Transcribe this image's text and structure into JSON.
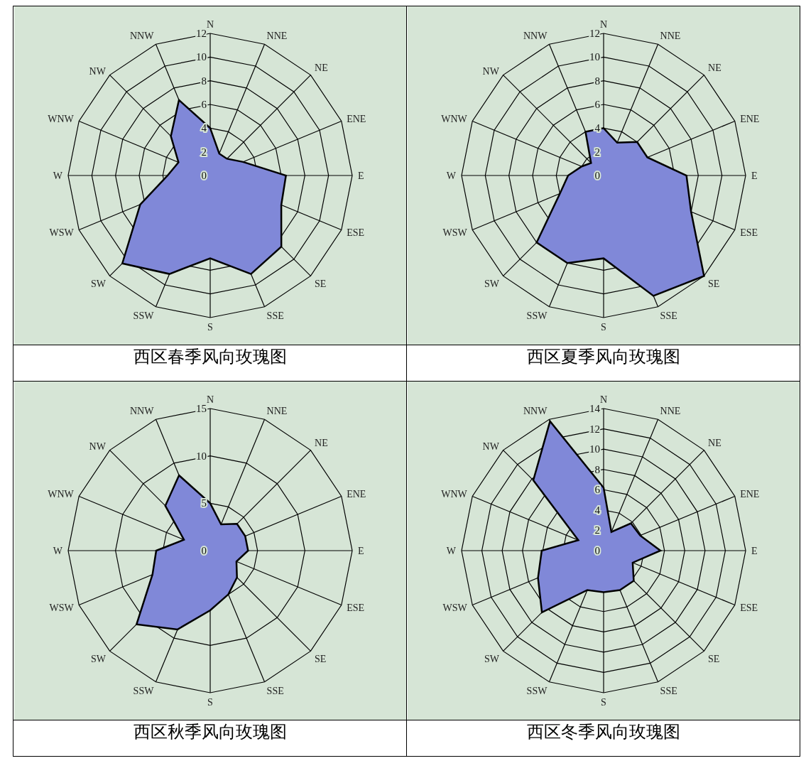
{
  "chart_data": [
    {
      "type": "radar",
      "title": "西区春季风向玫瑰图",
      "categories": [
        "N",
        "NNE",
        "NE",
        "ENE",
        "E",
        "ESE",
        "SE",
        "SSE",
        "S",
        "SSW",
        "SW",
        "WSW",
        "W",
        "WNW",
        "NW",
        "NNW"
      ],
      "series": [
        {
          "color": "#8088d8",
          "values": [
            4,
            2,
            2,
            3,
            6.4,
            6.5,
            8.5,
            9,
            7,
            9,
            10.5,
            6.4,
            3.6,
            2.9,
            4.7,
            6.9
          ]
        }
      ],
      "ylim": [
        0,
        12
      ],
      "yticks": [
        0,
        2,
        4,
        6,
        8,
        10,
        12
      ],
      "grid": true
    },
    {
      "type": "radar",
      "title": "西区夏季风向玫瑰图",
      "categories": [
        "N",
        "NNE",
        "NE",
        "ENE",
        "E",
        "ESE",
        "SE",
        "SSE",
        "S",
        "SSW",
        "SW",
        "WSW",
        "W",
        "WNW",
        "NW",
        "NNW"
      ],
      "series": [
        {
          "color": "#8088d8",
          "values": [
            4,
            3,
            4,
            4,
            7,
            8,
            12,
            11,
            7,
            8,
            8,
            4,
            3,
            2,
            1.5,
            4
          ]
        }
      ],
      "ylim": [
        0,
        12
      ],
      "yticks": [
        0,
        2,
        4,
        6,
        8,
        10,
        12
      ],
      "grid": true
    },
    {
      "type": "radar",
      "title": "西区秋季风向玫瑰图",
      "categories": [
        "N",
        "NNE",
        "NE",
        "ENE",
        "E",
        "ESE",
        "SE",
        "SSE",
        "S",
        "SSW",
        "SW",
        "WSW",
        "W",
        "WNW",
        "NW",
        "NNW"
      ],
      "series": [
        {
          "color": "#8088d8",
          "values": [
            5,
            3,
            4,
            4,
            4,
            3,
            4,
            5,
            6.3,
            9,
            11,
            6.6,
            5.7,
            3,
            6.7,
            8.6
          ]
        }
      ],
      "ylim": [
        0,
        15
      ],
      "yticks": [
        0,
        5,
        10,
        15
      ],
      "grid": true
    },
    {
      "type": "radar",
      "title": "西区冬季风向玫瑰图",
      "categories": [
        "N",
        "NNE",
        "NE",
        "ENE",
        "E",
        "ESE",
        "SE",
        "SSE",
        "S",
        "SSW",
        "SW",
        "WSW",
        "W",
        "WNW",
        "NW",
        "NNW"
      ],
      "series": [
        {
          "color": "#8088d8",
          "values": [
            6.2,
            2,
            3.8,
            3.9,
            5.6,
            3.1,
            4.2,
            4.2,
            4.1,
            4.2,
            8.6,
            7,
            6.1,
            2.7,
            9.8,
            13.8
          ]
        }
      ],
      "ylim": [
        0,
        14
      ],
      "yticks": [
        0,
        2,
        4,
        6,
        8,
        10,
        12,
        14
      ],
      "grid": true
    }
  ]
}
